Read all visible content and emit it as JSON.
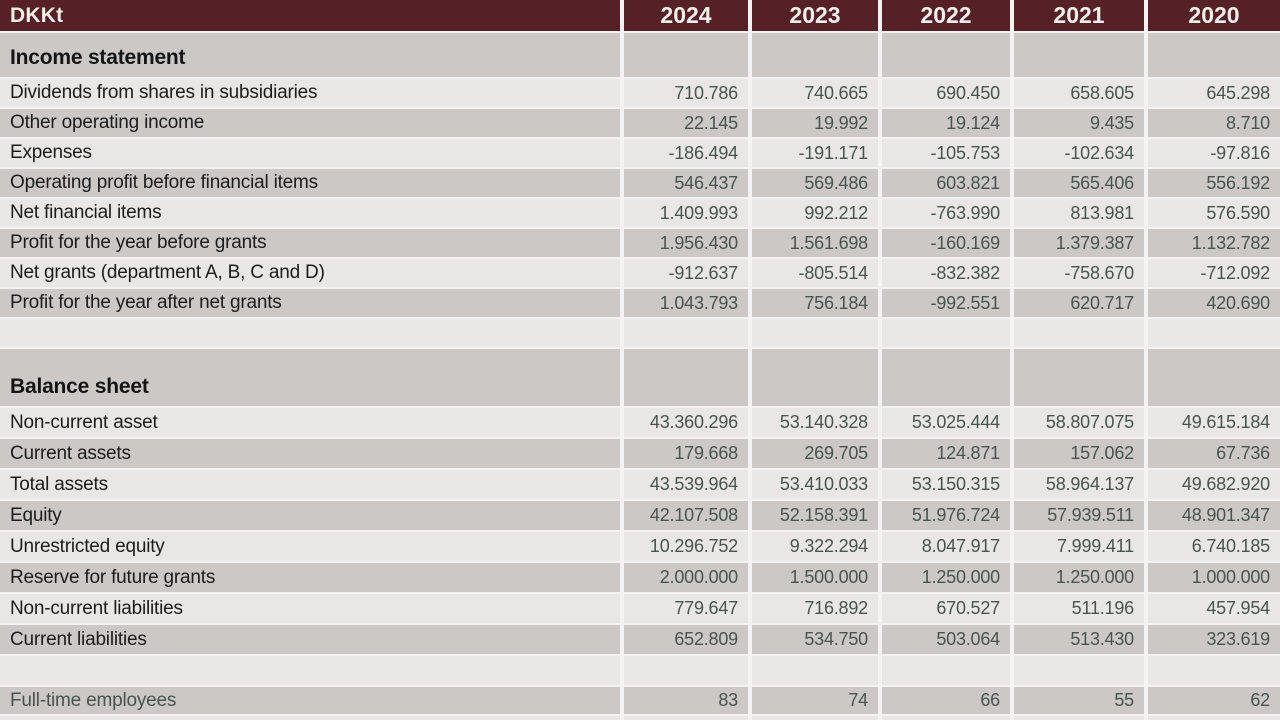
{
  "header": {
    "unit": "DKKt",
    "years": [
      "2024",
      "2023",
      "2022",
      "2021",
      "2020"
    ]
  },
  "income_statement": {
    "title": "Income statement",
    "rows": [
      {
        "label": "Dividends from shares in subsidiaries",
        "values": [
          "710.786",
          "740.665",
          "690.450",
          "658.605",
          "645.298"
        ]
      },
      {
        "label": "Other operating income",
        "values": [
          "22.145",
          "19.992",
          "19.124",
          "9.435",
          "8.710"
        ]
      },
      {
        "label": "Expenses",
        "values": [
          "-186.494",
          "-191.171",
          "-105.753",
          "-102.634",
          "-97.816"
        ]
      },
      {
        "label": "Operating profit before financial items",
        "values": [
          "546.437",
          "569.486",
          "603.821",
          "565.406",
          "556.192"
        ]
      },
      {
        "label": "Net financial items",
        "values": [
          "1.409.993",
          "992.212",
          "-763.990",
          "813.981",
          "576.590"
        ]
      },
      {
        "label": "Profit for the year before grants",
        "values": [
          "1.956.430",
          "1.561.698",
          "-160.169",
          "1.379.387",
          "1.132.782"
        ]
      },
      {
        "label": "Net grants (department A, B, C and D)",
        "values": [
          "-912.637",
          "-805.514",
          "-832.382",
          "-758.670",
          "-712.092"
        ]
      },
      {
        "label": "Profit for the year after net grants",
        "values": [
          "1.043.793",
          "756.184",
          "-992.551",
          "620.717",
          "420.690"
        ]
      }
    ]
  },
  "balance_sheet": {
    "title": "Balance sheet",
    "rows": [
      {
        "label": "Non-current asset",
        "values": [
          "43.360.296",
          "53.140.328",
          "53.025.444",
          "58.807.075",
          "49.615.184"
        ]
      },
      {
        "label": "Current assets",
        "values": [
          "179.668",
          "269.705",
          "124.871",
          "157.062",
          "67.736"
        ]
      },
      {
        "label": "Total assets",
        "values": [
          "43.539.964",
          "53.410.033",
          "53.150.315",
          "58.964.137",
          "49.682.920"
        ]
      },
      {
        "label": "Equity",
        "values": [
          "42.107.508",
          "52.158.391",
          "51.976.724",
          "57.939.511",
          "48.901.347"
        ]
      },
      {
        "label": "Unrestricted equity",
        "values": [
          "10.296.752",
          "9.322.294",
          "8.047.917",
          "7.999.411",
          "6.740.185"
        ]
      },
      {
        "label": "Reserve for future grants",
        "values": [
          "2.000.000",
          "1.500.000",
          "1.250.000",
          "1.250.000",
          "1.000.000"
        ]
      },
      {
        "label": "Non-current liabilities",
        "values": [
          "779.647",
          "716.892",
          "670.527",
          "511.196",
          "457.954"
        ]
      },
      {
        "label": "Current liabilities",
        "values": [
          "652.809",
          "534.750",
          "503.064",
          "513.430",
          "323.619"
        ]
      }
    ]
  },
  "employees": {
    "label": "Full-time employees",
    "values": [
      "83",
      "74",
      "66",
      "55",
      "62"
    ]
  },
  "colors": {
    "header_bg": "#552126",
    "header_text": "#f4efe9",
    "row_light": "#e9e7e5",
    "row_dark": "#cbc8c5",
    "separator": "#f5f3f1",
    "label_text": "#1c1c1c",
    "number_text": "#4a544f"
  }
}
